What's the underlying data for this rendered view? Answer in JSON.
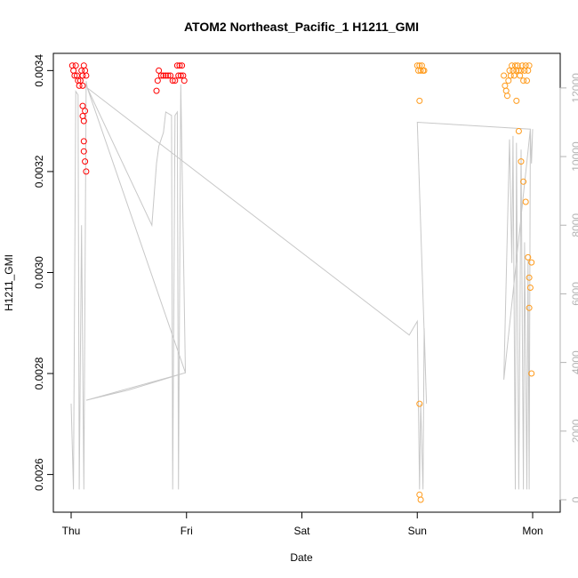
{
  "chart_data": {
    "type": "scatter",
    "title": "ATOM2 Northeast_Pacific_1 H1211_GMI",
    "xlabel": "Date",
    "ylabel": "H1211_GMI",
    "x_ticks": [
      "Thu",
      "Fri",
      "Sat",
      "Sun",
      "Mon"
    ],
    "x_range_days": [
      0,
      4
    ],
    "ylim": [
      0.00255,
      0.00342
    ],
    "y_ticks": [
      0.0026,
      0.0028,
      0.003,
      0.0032,
      0.0034
    ],
    "y_tick_labels": [
      "0.0026",
      "0.0028",
      "0.0030",
      "0.0032",
      "0.0034"
    ],
    "y2lim": [
      0,
      12800
    ],
    "y2_ticks": [
      0,
      2000,
      4000,
      6000,
      8000,
      10000,
      12000
    ],
    "y2_tick_labels": [
      "0",
      "2000",
      "4000",
      "6000",
      "8000",
      "10000",
      "12000"
    ],
    "grid": false,
    "colors": {
      "red": "#ff0000",
      "orange": "#ff9a1a",
      "gray": "#c8c8c8",
      "axis": "#000000",
      "right_axis": "#b3b3b3"
    },
    "series": [
      {
        "color": "red",
        "points": [
          [
            0.01,
            0.00341
          ],
          [
            0.02,
            0.0034
          ],
          [
            0.03,
            0.00339
          ],
          [
            0.04,
            0.00341
          ],
          [
            0.05,
            0.00339
          ],
          [
            0.06,
            0.00338
          ],
          [
            0.07,
            0.00337
          ],
          [
            0.08,
            0.00338
          ],
          [
            0.09,
            0.0034
          ],
          [
            0.1,
            0.00339
          ],
          [
            0.11,
            0.00341
          ],
          [
            0.12,
            0.0034
          ],
          [
            0.13,
            0.00339
          ],
          [
            0.1,
            0.00337
          ],
          [
            0.1,
            0.00333
          ],
          [
            0.1,
            0.00331
          ],
          [
            0.11,
            0.0033
          ],
          [
            0.11,
            0.00326
          ],
          [
            0.11,
            0.00324
          ],
          [
            0.12,
            0.00322
          ],
          [
            0.13,
            0.0032
          ],
          [
            0.12,
            0.00332
          ],
          [
            0.74,
            0.00336
          ],
          [
            0.75,
            0.00338
          ],
          [
            0.76,
            0.0034
          ],
          [
            0.78,
            0.00339
          ],
          [
            0.8,
            0.00339
          ],
          [
            0.82,
            0.00339
          ],
          [
            0.84,
            0.00339
          ],
          [
            0.86,
            0.00339
          ],
          [
            0.88,
            0.00338
          ],
          [
            0.9,
            0.00338
          ],
          [
            0.92,
            0.00341
          ],
          [
            0.93,
            0.00339
          ],
          [
            0.94,
            0.00341
          ],
          [
            0.95,
            0.00339
          ],
          [
            0.96,
            0.00341
          ],
          [
            0.97,
            0.00339
          ],
          [
            0.98,
            0.00338
          ]
        ]
      },
      {
        "color": "orange",
        "points": [
          [
            3.0,
            0.00341
          ],
          [
            3.01,
            0.0034
          ],
          [
            3.02,
            0.00341
          ],
          [
            3.03,
            0.0034
          ],
          [
            3.04,
            0.00341
          ],
          [
            3.05,
            0.0034
          ],
          [
            3.06,
            0.0034
          ],
          [
            3.02,
            0.00334
          ],
          [
            3.02,
            0.00274
          ],
          [
            3.02,
            0.00256
          ],
          [
            3.03,
            0.00255
          ],
          [
            3.75,
            0.00339
          ],
          [
            3.76,
            0.00337
          ],
          [
            3.77,
            0.00336
          ],
          [
            3.78,
            0.00335
          ],
          [
            3.79,
            0.00338
          ],
          [
            3.8,
            0.0034
          ],
          [
            3.81,
            0.00339
          ],
          [
            3.82,
            0.00341
          ],
          [
            3.83,
            0.0034
          ],
          [
            3.84,
            0.00339
          ],
          [
            3.85,
            0.00341
          ],
          [
            3.86,
            0.0034
          ],
          [
            3.87,
            0.00341
          ],
          [
            3.88,
            0.0034
          ],
          [
            3.89,
            0.00339
          ],
          [
            3.9,
            0.0034
          ],
          [
            3.91,
            0.00341
          ],
          [
            3.92,
            0.00338
          ],
          [
            3.93,
            0.0034
          ],
          [
            3.94,
            0.00341
          ],
          [
            3.95,
            0.00338
          ],
          [
            3.96,
            0.0034
          ],
          [
            3.97,
            0.00341
          ],
          [
            3.86,
            0.00334
          ],
          [
            3.88,
            0.00328
          ],
          [
            3.9,
            0.00322
          ],
          [
            3.92,
            0.00318
          ],
          [
            3.94,
            0.00314
          ],
          [
            3.96,
            0.00303
          ],
          [
            3.97,
            0.00299
          ],
          [
            3.98,
            0.00297
          ],
          [
            3.99,
            0.00302
          ],
          [
            3.97,
            0.00293
          ],
          [
            3.99,
            0.0028
          ]
        ]
      }
    ],
    "secondary_series": {
      "color": "gray",
      "points": [
        [
          0.0,
          2800
        ],
        [
          0.02,
          300
        ],
        [
          0.04,
          11900
        ],
        [
          0.06,
          11800
        ],
        [
          0.07,
          300
        ],
        [
          0.09,
          8000
        ],
        [
          0.11,
          300
        ],
        [
          0.13,
          12200
        ],
        [
          0.14,
          12000
        ],
        [
          0.7,
          8000
        ],
        [
          0.74,
          9800
        ],
        [
          0.76,
          10300
        ],
        [
          0.78,
          10500
        ],
        [
          0.8,
          10700
        ],
        [
          0.82,
          11300
        ],
        [
          0.87,
          11200
        ],
        [
          0.88,
          300
        ],
        [
          0.9,
          11200
        ],
        [
          0.92,
          11300
        ],
        [
          0.93,
          300
        ],
        [
          0.95,
          12100
        ],
        [
          0.99,
          3700
        ],
        [
          0.13,
          2900
        ],
        [
          0.5,
          3200
        ],
        [
          0.99,
          3700
        ],
        [
          0.14,
          12000
        ],
        [
          2.93,
          4800
        ],
        [
          3.0,
          5200
        ],
        [
          3.02,
          300
        ],
        [
          3.03,
          2800
        ],
        [
          3.05,
          300
        ],
        [
          3.06,
          5000
        ],
        [
          3.08,
          2800
        ],
        [
          3.0,
          11000
        ],
        [
          3.98,
          10800
        ],
        [
          3.75,
          3500
        ],
        [
          3.8,
          10500
        ],
        [
          3.82,
          6900
        ],
        [
          3.83,
          10600
        ],
        [
          3.85,
          300
        ],
        [
          3.86,
          10400
        ],
        [
          3.88,
          300
        ],
        [
          3.9,
          10200
        ],
        [
          3.92,
          300
        ],
        [
          3.93,
          7500
        ],
        [
          3.95,
          300
        ],
        [
          3.96,
          7000
        ],
        [
          3.97,
          300
        ],
        [
          3.98,
          10800
        ],
        [
          3.99,
          9800
        ],
        [
          4.0,
          10800
        ]
      ]
    }
  }
}
